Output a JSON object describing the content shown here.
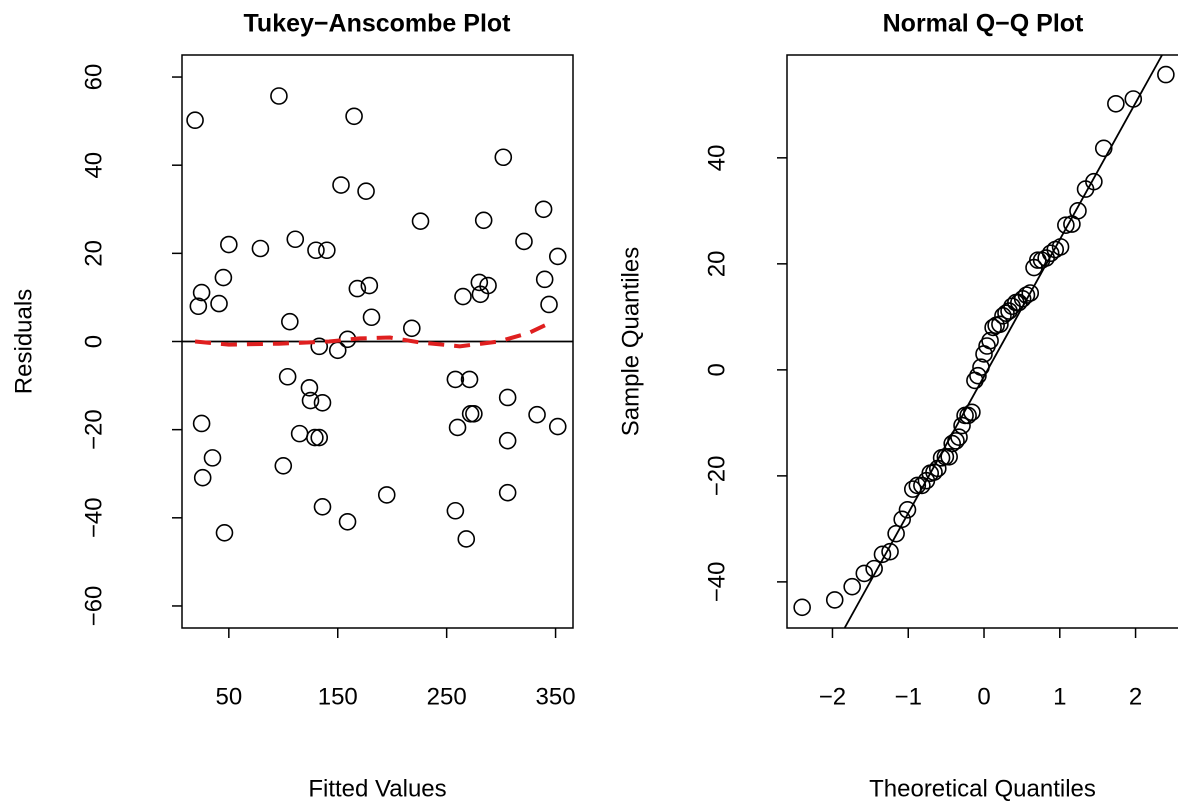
{
  "chart_data": [
    {
      "type": "scatter",
      "title": "Tukey−Anscombe Plot",
      "xlabel": "Fitted Values",
      "ylabel": "Residuals",
      "xlim": [
        7,
        366
      ],
      "ylim": [
        -65,
        65
      ],
      "xticks": [
        50,
        150,
        250,
        350
      ],
      "yticks": [
        {
          "value": -60,
          "label": "−60"
        },
        {
          "value": -40,
          "label": "−40"
        },
        {
          "value": -20,
          "label": "−20"
        },
        0,
        20,
        40,
        60
      ],
      "hline": 0,
      "series": [
        {
          "mode": "points",
          "color": "#000000",
          "x": [
            19,
            22,
            25,
            25,
            26,
            35,
            41,
            45,
            46,
            50,
            79,
            96,
            100,
            104,
            106,
            111,
            115,
            124,
            125,
            129,
            130,
            133,
            133,
            136,
            136,
            150,
            153,
            159,
            159,
            165,
            168,
            176,
            179,
            181,
            195,
            218,
            226,
            258,
            258,
            260,
            265,
            268,
            271,
            272,
            275,
            280,
            281,
            284,
            288,
            302,
            306,
            306,
            306,
            321,
            333,
            339,
            340,
            344,
            352,
            352,
            140
          ],
          "values": [
            50.2,
            8.0,
            11.1,
            -18.6,
            -30.9,
            -26.4,
            8.6,
            14.5,
            -43.4,
            22.0,
            21.1,
            55.7,
            -28.2,
            -8.0,
            4.5,
            23.2,
            -20.9,
            -10.5,
            -13.4,
            -21.8,
            20.7,
            -21.8,
            -1.1,
            -13.9,
            -37.5,
            -2.0,
            35.5,
            -40.9,
            0.5,
            51.1,
            12.0,
            34.1,
            12.7,
            5.5,
            -34.8,
            3.0,
            27.3,
            -8.6,
            -38.4,
            -19.5,
            10.2,
            -44.8,
            -8.6,
            -16.4,
            -16.4,
            13.4,
            10.7,
            27.5,
            12.7,
            41.8,
            -12.7,
            -22.5,
            -34.3,
            22.7,
            -16.6,
            30.0,
            14.1,
            8.4,
            19.3,
            -19.3,
            20.7
          ]
        },
        {
          "mode": "line",
          "dashed": true,
          "color": "#df1f1f",
          "x": [
            19,
            50,
            96,
            142,
            170,
            198,
            225,
            262,
            298,
            326,
            344
          ],
          "values": [
            0.0,
            -0.7,
            -0.5,
            0.0,
            0.7,
            0.9,
            -0.2,
            -1.1,
            0.0,
            2.0,
            4.1
          ]
        }
      ]
    },
    {
      "type": "scatter",
      "title": "Normal Q−Q Plot",
      "xlabel": "Theoretical Quantiles",
      "ylabel": "Sample Quantiles",
      "xlim": [
        -2.6,
        2.56
      ],
      "ylim": [
        -48.7,
        59.4
      ],
      "xticks": [
        {
          "value": -2,
          "label": "−2"
        },
        {
          "value": -1,
          "label": "−1"
        },
        0,
        1,
        2
      ],
      "yticks": [
        {
          "value": -40,
          "label": "−40"
        },
        {
          "value": -20,
          "label": "−20"
        },
        0,
        20,
        40
      ],
      "series": [
        {
          "mode": "points",
          "color": "#000000",
          "x": [
            -2.4,
            -1.97,
            -1.74,
            -1.58,
            -1.45,
            -1.34,
            -1.24,
            -1.16,
            -1.08,
            -1.01,
            -0.94,
            -0.88,
            -0.82,
            -0.76,
            -0.71,
            -0.66,
            -0.61,
            -0.56,
            -0.51,
            -0.46,
            -0.42,
            -0.37,
            -0.33,
            -0.29,
            -0.25,
            -0.21,
            -0.16,
            -0.12,
            -0.08,
            -0.04,
            0,
            0.04,
            0.08,
            0.12,
            0.16,
            0.21,
            0.25,
            0.29,
            0.33,
            0.37,
            0.42,
            0.46,
            0.51,
            0.56,
            0.61,
            0.66,
            0.71,
            0.76,
            0.82,
            0.88,
            0.94,
            1.01,
            1.08,
            1.16,
            1.24,
            1.34,
            1.45,
            1.58,
            1.74,
            1.97,
            2.4
          ],
          "values": [
            -44.8,
            -43.4,
            -40.9,
            -38.4,
            -37.5,
            -34.8,
            -34.3,
            -30.9,
            -28.2,
            -26.4,
            -22.5,
            -21.8,
            -21.8,
            -20.9,
            -19.5,
            -19.3,
            -18.6,
            -16.6,
            -16.4,
            -16.4,
            -13.9,
            -13.4,
            -12.7,
            -10.5,
            -8.6,
            -8.6,
            -8.0,
            -2.0,
            -1.1,
            0.5,
            3.0,
            4.5,
            5.5,
            8.0,
            8.4,
            8.6,
            10.2,
            10.7,
            11.1,
            12.0,
            12.7,
            12.7,
            13.4,
            14.1,
            14.5,
            19.3,
            20.7,
            20.7,
            21.1,
            22.0,
            22.7,
            23.2,
            27.3,
            27.5,
            30.0,
            34.1,
            35.5,
            41.8,
            50.2,
            51.1,
            55.7
          ]
        },
        {
          "mode": "line",
          "color": "#000000",
          "x": [
            -1.84,
            2.35
          ],
          "values": [
            -48.7,
            59.4
          ]
        }
      ]
    }
  ]
}
